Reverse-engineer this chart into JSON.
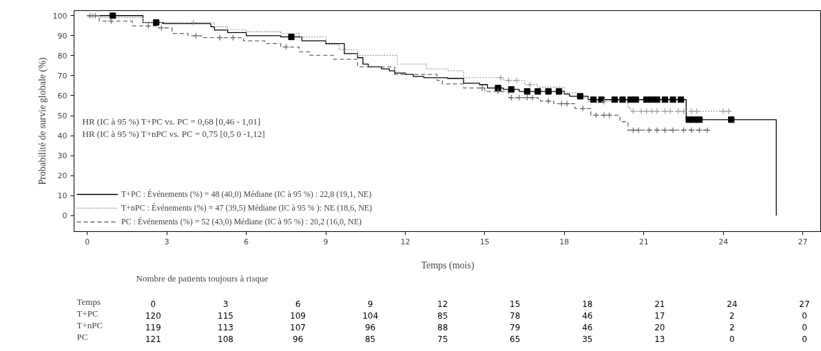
{
  "chart_data": {
    "type": "step",
    "xlabel": "Temps (mois)",
    "ylabel": "Probabilité de survie globale (%)",
    "xlim": [
      -0.5,
      27.7
    ],
    "ylim": [
      -8,
      102.5
    ],
    "xticks": [
      0,
      3,
      6,
      9,
      12,
      15,
      18,
      21,
      24,
      27
    ],
    "yticks": [
      0,
      10,
      20,
      30,
      40,
      50,
      60,
      70,
      80,
      90,
      100
    ],
    "grid": false,
    "legend": "bottom left",
    "annotations": [
      "HR (IC à 95 %) T+PC vs. PC = 0,68 [0,46 - 1,01]",
      "HR (IC à 95 %) T+nPC vs. PC = 0,75 [0,5 0 -1,12]",
      "Nombre de patients toujours à risque",
      "Temps",
      "0",
      "3",
      "6",
      "9",
      "12",
      "15",
      "18",
      "21",
      "24",
      "27",
      "T+PC",
      "120",
      "115",
      "109",
      "104",
      "85",
      "78",
      "46",
      "17",
      "2",
      "0",
      "T+nPC",
      "119",
      "113",
      "107",
      "96",
      "88",
      "79",
      "46",
      "20",
      "2",
      "0",
      "PC",
      "121",
      "108",
      "96",
      "85",
      "75",
      "65",
      "35",
      "13",
      "0",
      "0"
    ],
    "series": [
      {
        "name": "T+PC : Événements (%) = 48 (40,0) Médiane (IC à 95 %) : 22,8 (19,1, NE)",
        "color": "#000000",
        "line_style": "solid",
        "x": [
          0,
          0.96,
          2.1,
          2.6,
          2.85,
          4.66,
          4.8,
          5.3,
          6.0,
          7.3,
          7.7,
          8.1,
          9.0,
          9.7,
          10.2,
          10.4,
          10.6,
          11.1,
          11.4,
          11.6,
          12.0,
          12.3,
          12.7,
          13.6,
          14.2,
          14.8,
          15.1,
          15.5,
          15.7,
          16.0,
          16.3,
          16.6,
          17.0,
          17.4,
          17.8,
          18.0,
          18.2,
          18.6,
          18.9,
          19.1,
          19.4,
          19.9,
          20.2,
          20.5,
          20.7,
          21.1,
          21.3,
          21.5,
          21.8,
          22.1,
          22.4,
          22.6,
          22.7,
          22.9,
          23.1,
          24.3,
          26.0
        ],
        "values": [
          100,
          100,
          96.6,
          96.6,
          96,
          94.5,
          92.8,
          91.5,
          90,
          89.4,
          89.4,
          87.4,
          86,
          81,
          79,
          75.8,
          74.4,
          73.4,
          72.4,
          71.3,
          70.6,
          69.6,
          69,
          68.6,
          66.2,
          65.5,
          63.8,
          63.8,
          63.1,
          63.1,
          62.1,
          62.1,
          62.1,
          62.1,
          62.1,
          60.8,
          59.7,
          59.7,
          58,
          58,
          58,
          58,
          58,
          58,
          58,
          58,
          58,
          58,
          58,
          58,
          58,
          48,
          48,
          48,
          48,
          48,
          0
        ]
      },
      {
        "name": "T+nPC : Événements (%) = 47 (39,5) Médiane (IC à 95 % ): NE (18,6, NE)",
        "color": "#999999",
        "line_style": "dotted",
        "x": [
          0,
          0.2,
          0.5,
          2.1,
          4.0,
          4.8,
          5.3,
          6.0,
          7.3,
          8.0,
          9.0,
          9.5,
          10.2,
          11.7,
          12.8,
          13.6,
          14.2,
          15.6,
          15.7,
          15.9,
          16.2,
          16.5,
          16.7,
          17.0,
          18.0,
          18.5,
          18.9,
          19.5,
          20.4,
          20.5,
          20.6,
          20.9,
          21.1,
          21.3,
          21.5,
          21.8,
          22.0,
          22.3,
          22.5,
          22.8,
          23.0,
          24.0,
          24.2
        ],
        "values": [
          100,
          100,
          99,
          96.6,
          96.6,
          94.5,
          93,
          92,
          91,
          89.4,
          85.6,
          83,
          80.2,
          75.8,
          73.4,
          72.4,
          69,
          69,
          67.6,
          67.6,
          67.6,
          65.5,
          65.5,
          64.2,
          61.4,
          59,
          57,
          57,
          54,
          52.2,
          52.2,
          52.2,
          52.2,
          52.2,
          52.2,
          52.2,
          52.2,
          52.2,
          52.2,
          52.2,
          52.2,
          52.2,
          52.2
        ]
      },
      {
        "name": "PC : Événements (%) = 52 (43,0) Médiane (IC à 95 %) : 20,2 (16,0, NE)",
        "color": "#666666",
        "line_style": "dashed",
        "x": [
          0,
          0.1,
          0.3,
          0.45,
          0.9,
          1.7,
          2.3,
          2.6,
          2.8,
          3.2,
          3.8,
          4.1,
          4.3,
          5.0,
          5.5,
          5.9,
          6.7,
          7.3,
          7.5,
          8.0,
          8.4,
          9.3,
          10.2,
          11.6,
          13.2,
          13.4,
          14.2,
          14.9,
          15.0,
          15.5,
          15.9,
          16.0,
          16.3,
          16.6,
          16.8,
          17.0,
          17.1,
          17.4,
          17.6,
          17.9,
          18.1,
          18.4,
          18.7,
          19.0,
          19.2,
          19.5,
          19.7,
          20.1,
          20.4,
          20.6,
          20.8,
          21.2,
          21.5,
          21.8,
          22.1,
          22.5,
          22.8,
          23.1,
          23.4
        ],
        "values": [
          100,
          100,
          100,
          97.3,
          97.3,
          94.9,
          94.9,
          93.9,
          93.9,
          91.1,
          90,
          90,
          89,
          89,
          89,
          87.4,
          86,
          84.3,
          84.3,
          81.9,
          80.2,
          78.2,
          74.4,
          70.6,
          67.6,
          65.9,
          63.8,
          63.8,
          62.1,
          62.1,
          59,
          59,
          59,
          59,
          59,
          58.7,
          57.3,
          57.3,
          56,
          56,
          56,
          53.6,
          53.6,
          50.2,
          50.2,
          50.2,
          50.2,
          47,
          42.7,
          42.7,
          42.7,
          42.7,
          42.7,
          42.7,
          42.7,
          42.7,
          42.7,
          42.7,
          42.7
        ]
      },
      {
        "type": "scatter",
        "color": "#000000",
        "marker": "square",
        "x": [
          0.96,
          2.6,
          7.7,
          15.5,
          16.0,
          16.6,
          17.0,
          17.4,
          17.8,
          18.6,
          19.1,
          19.4,
          19.9,
          20.2,
          20.5,
          20.7,
          21.1,
          21.3,
          21.5,
          21.8,
          22.1,
          22.4,
          22.7,
          22.9,
          23.1,
          24.3
        ],
        "values": [
          100,
          96.6,
          89.4,
          63.8,
          63.1,
          62.1,
          62.1,
          62.1,
          62.1,
          59.7,
          58,
          58,
          58,
          58,
          58,
          58,
          58,
          58,
          58,
          58,
          58,
          58,
          48,
          48,
          48,
          48
        ]
      },
      {
        "type": "scatter",
        "color": "#999999",
        "marker": "cross",
        "x": [
          0.2,
          4.0,
          15.6,
          15.9,
          16.2,
          16.7,
          19.5,
          20.6,
          20.9,
          21.1,
          21.3,
          21.5,
          21.8,
          22.0,
          22.3,
          22.5,
          22.8,
          23.0,
          24.0,
          24.2
        ],
        "values": [
          100,
          96.6,
          69,
          67.6,
          67.6,
          65.5,
          57,
          52.2,
          52.2,
          52.2,
          52.2,
          52.2,
          52.2,
          52.2,
          52.2,
          52.2,
          52.2,
          52.2,
          52.2,
          52.2
        ]
      },
      {
        "type": "scatter",
        "color": "#666666",
        "marker": "cross",
        "x": [
          0.1,
          0.3,
          0.9,
          2.3,
          2.8,
          4.1,
          5.0,
          5.5,
          7.5,
          14.9,
          15.5,
          16.0,
          16.3,
          16.6,
          16.8,
          17.4,
          17.9,
          18.1,
          18.7,
          19.2,
          19.5,
          19.7,
          20.6,
          20.8,
          21.2,
          21.5,
          21.8,
          22.1,
          22.5,
          22.8,
          23.1,
          23.4
        ],
        "values": [
          100,
          100,
          97.3,
          94.9,
          93.9,
          90,
          89,
          89,
          84.3,
          63.8,
          62.1,
          59,
          59,
          59,
          59,
          57.3,
          56,
          56,
          53.6,
          50.2,
          50.2,
          50.2,
          42.7,
          42.7,
          42.7,
          42.7,
          42.7,
          42.7,
          42.7,
          42.7,
          42.7,
          42.7
        ]
      }
    ]
  }
}
